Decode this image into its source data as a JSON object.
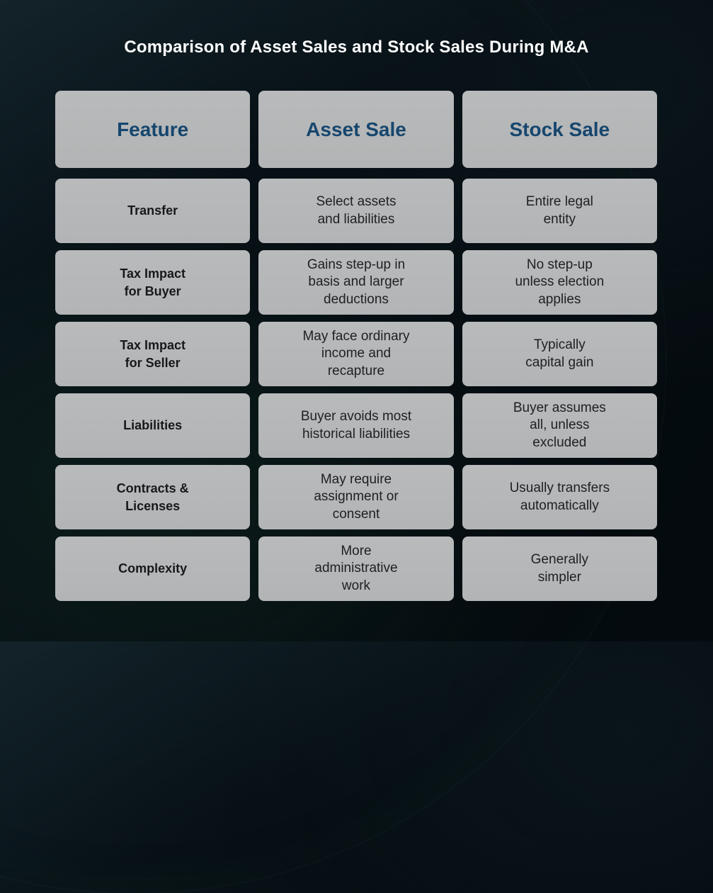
{
  "title": "Comparison of Asset Sales and Stock Sales During M&A",
  "table": {
    "headers": [
      "Feature",
      "Asset Sale",
      "Stock Sale"
    ],
    "rows": [
      {
        "feature": "Transfer",
        "asset_sale": "Select assets\nand liabilities",
        "stock_sale": "Entire legal\nentity"
      },
      {
        "feature": "Tax Impact\nfor Buyer",
        "asset_sale": "Gains step-up in\nbasis and larger\ndeductions",
        "stock_sale": "No step-up\nunless election\napplies"
      },
      {
        "feature": "Tax Impact\nfor Seller",
        "asset_sale": "May face ordinary\nincome and\nrecapture",
        "stock_sale": "Typically\ncapital gain"
      },
      {
        "feature": "Liabilities",
        "asset_sale": "Buyer avoids most\nhistorical liabilities",
        "stock_sale": "Buyer assumes\nall, unless\nexcluded"
      },
      {
        "feature": "Contracts &\nLicenses",
        "asset_sale": "May require\nassignment or\nconsent",
        "stock_sale": "Usually transfers\nautomatically"
      },
      {
        "feature": "Complexity",
        "asset_sale": "More\nadministrative\nwork",
        "stock_sale": "Generally\nsimpler"
      }
    ]
  },
  "chart_data": {
    "type": "table",
    "title": "Comparison of Asset Sales and Stock Sales During M&A",
    "columns": [
      "Feature",
      "Asset Sale",
      "Stock Sale"
    ],
    "rows": [
      [
        "Transfer",
        "Select assets and liabilities",
        "Entire legal entity"
      ],
      [
        "Tax Impact for Buyer",
        "Gains step-up in basis and larger deductions",
        "No step-up unless election applies"
      ],
      [
        "Tax Impact for Seller",
        "May face ordinary income and recapture",
        "Typically capital gain"
      ],
      [
        "Liabilities",
        "Buyer avoids most historical liabilities",
        "Buyer assumes all, unless excluded"
      ],
      [
        "Contracts & Licenses",
        "May require assignment or consent",
        "Usually transfers automatically"
      ],
      [
        "Complexity",
        "More administrative work",
        "Generally simpler"
      ]
    ],
    "layout_hints": {
      "legend": "none",
      "grid": "card-cells"
    }
  },
  "colors": {
    "page_background": "#060e13",
    "cell_background": "#b4b6b7",
    "header_text": "#16466e",
    "body_text": "#1d2024",
    "title_text": "#ffffff"
  }
}
